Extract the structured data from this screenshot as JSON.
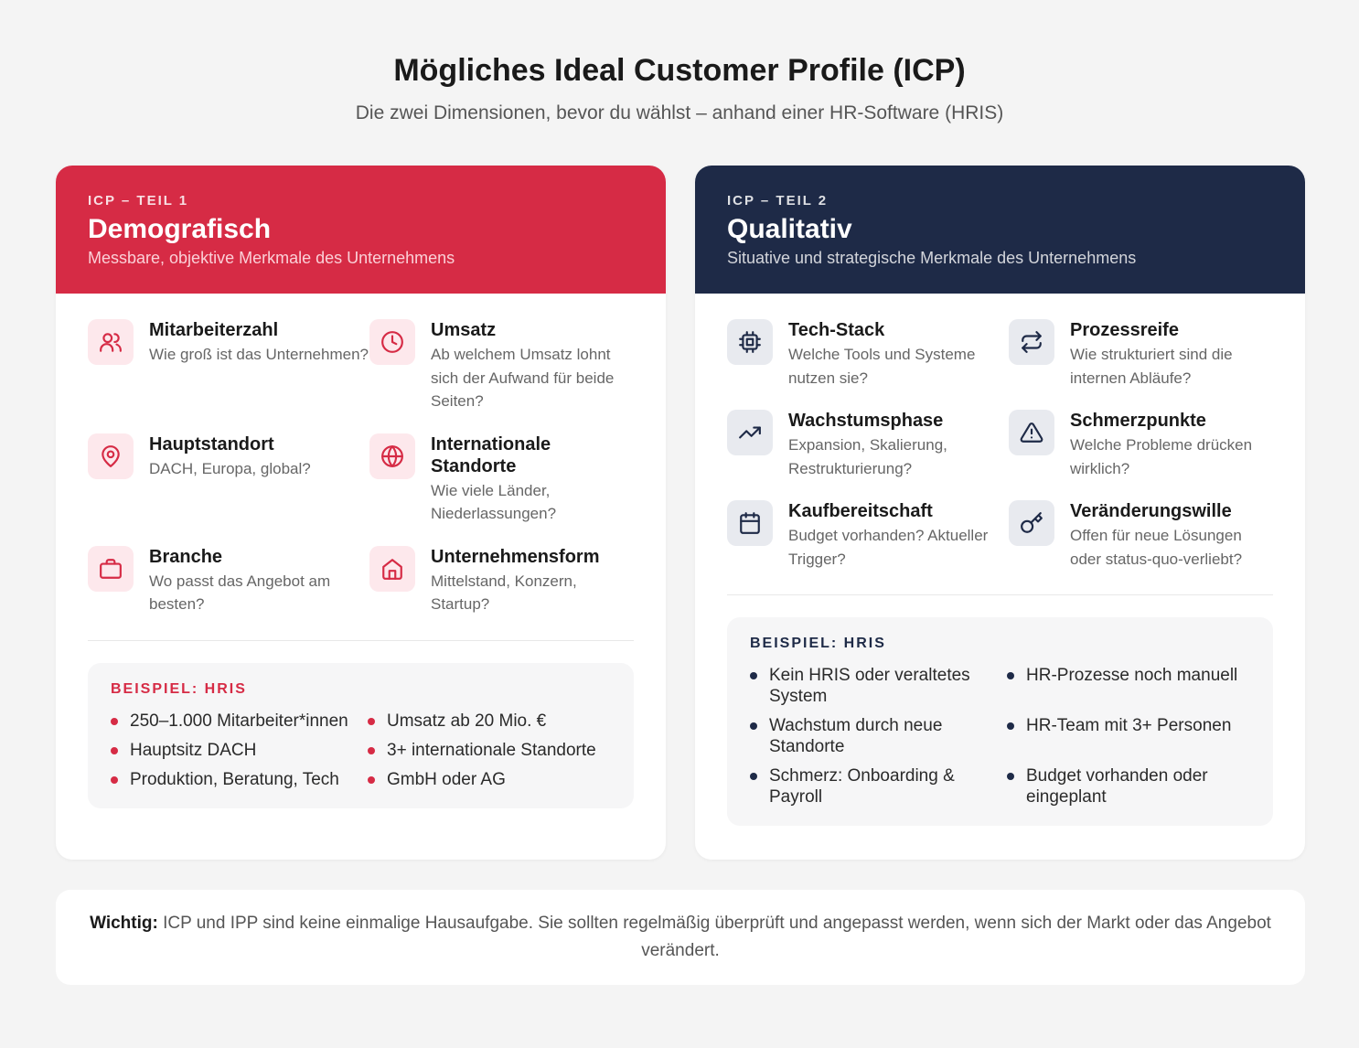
{
  "header": {
    "title": "Mögliches Ideal Customer Profile (ICP)",
    "subtitle": "Die zwei Dimensionen, bevor du wählst – anhand einer HR-Software (HRIS)"
  },
  "cards": [
    {
      "label": "ICP – TEIL 1",
      "title": "Demografisch",
      "subtitle": "Messbare, objektive Merkmale des Unternehmens",
      "items": [
        {
          "title": "Mitarbeiterzahl",
          "desc": "Wie groß ist das Unternehmen?"
        },
        {
          "title": "Umsatz",
          "desc": "Ab welchem Umsatz lohnt sich der Aufwand für beide Seiten?"
        },
        {
          "title": "Hauptstandort",
          "desc": "DACH, Europa, global?"
        },
        {
          "title": "Internationale Standorte",
          "desc": "Wie viele Länder, Niederlassungen?"
        },
        {
          "title": "Branche",
          "desc": "Wo passt das Angebot am besten?"
        },
        {
          "title": "Unternehmensform",
          "desc": "Mittelstand, Konzern, Startup?"
        }
      ],
      "example": {
        "label": "BEISPIEL: HRIS",
        "items": [
          "250–1.000 Mitarbeiter*innen",
          "Umsatz ab 20 Mio. €",
          "Hauptsitz DACH",
          "3+ internationale Standorte",
          "Produktion, Beratung, Tech",
          "GmbH oder AG"
        ]
      }
    },
    {
      "label": "ICP – TEIL 2",
      "title": "Qualitativ",
      "subtitle": "Situative und strategische Merkmale des Unternehmens",
      "items": [
        {
          "title": "Tech-Stack",
          "desc": "Welche Tools und Systeme nutzen sie?"
        },
        {
          "title": "Prozessreife",
          "desc": "Wie strukturiert sind die internen Abläufe?"
        },
        {
          "title": "Wachstumsphase",
          "desc": "Expansion, Skalierung, Restrukturierung?"
        },
        {
          "title": "Schmerzpunkte",
          "desc": "Welche Probleme drücken wirklich?"
        },
        {
          "title": "Kaufbereitschaft",
          "desc": "Budget vorhanden? Aktueller Trigger?"
        },
        {
          "title": "Veränderungswille",
          "desc": "Offen für neue Lösungen oder status-quo-verliebt?"
        }
      ],
      "example": {
        "label": "BEISPIEL: HRIS",
        "items": [
          "Kein HRIS oder veraltetes System",
          "HR-Prozesse noch manuell",
          "Wachstum durch neue Standorte",
          "HR-Team mit 3+ Personen",
          "Schmerz: Onboarding & Payroll",
          "Budget vorhanden oder eingeplant"
        ]
      }
    }
  ],
  "note": {
    "strong": "Wichtig:",
    "text": "ICP und IPP sind keine einmalige Hausaufgabe. Sie sollten regelmäßig überprüft und angepasst werden, wenn sich der Markt oder das Angebot verändert."
  }
}
